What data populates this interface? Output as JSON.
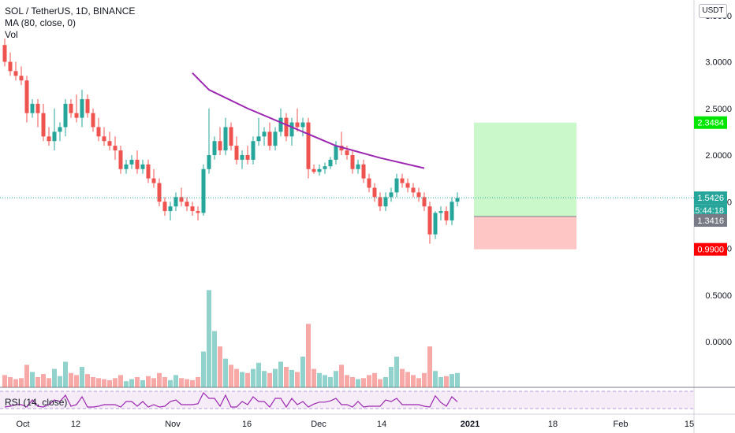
{
  "header": {
    "symbol": "SOL / TetherUS, 1D, BINANCE",
    "ma_label": "MA (80, close, 0)",
    "vol_label": "Vol",
    "currency": "USDT"
  },
  "rsi": {
    "label": "RSI (14, close)"
  },
  "price_axis": {
    "ticks": [
      "3.0000",
      "2.5000",
      "2.0000",
      "1.5000",
      "1.0000",
      "0.5000",
      "0.0000"
    ],
    "partial_top": "3.5000"
  },
  "time_axis": {
    "ticks": [
      "Oct",
      "12",
      "Nov",
      "16",
      "Dec",
      "14",
      "2021",
      "18",
      "Feb",
      "15"
    ]
  },
  "badges": {
    "take_profit": {
      "value": "2.3484",
      "color": "#00e600"
    },
    "last_price": {
      "value": "1.5426",
      "color": "#26a69a"
    },
    "countdown": {
      "value": "15:44:18",
      "color": "#26a69a"
    },
    "entry": {
      "value": "1.3416",
      "color": "#787b86"
    },
    "stop_loss": {
      "value": "0.9900",
      "color": "#ff0000"
    }
  },
  "colors": {
    "up": "#26a69a",
    "down": "#ef5350",
    "ma": "#9c27b0",
    "rsi": "#7e57c2"
  },
  "chart_data": {
    "type": "candlestick",
    "title": "SOL / TetherUS, 1D, BINANCE",
    "y_range": [
      0,
      3.5
    ],
    "last_price": 1.5426,
    "position": {
      "take_profit": 2.3484,
      "entry": 1.3416,
      "stop_loss": 0.99
    },
    "ma_series": [
      [
        34,
        2.88
      ],
      [
        37,
        2.7
      ],
      [
        44,
        2.5
      ],
      [
        52,
        2.3
      ],
      [
        60,
        2.1
      ],
      [
        68,
        1.97
      ],
      [
        76,
        1.86
      ]
    ],
    "candles": [
      [
        3.18,
        3.25,
        2.95,
        3.0
      ],
      [
        3.0,
        3.1,
        2.85,
        2.9
      ],
      [
        2.9,
        3.0,
        2.8,
        2.85
      ],
      [
        2.85,
        2.95,
        2.75,
        2.8
      ],
      [
        2.8,
        2.85,
        2.35,
        2.45
      ],
      [
        2.45,
        2.6,
        2.4,
        2.55
      ],
      [
        2.55,
        2.6,
        2.3,
        2.45
      ],
      [
        2.45,
        2.55,
        2.15,
        2.2
      ],
      [
        2.2,
        2.3,
        2.1,
        2.15
      ],
      [
        2.15,
        2.5,
        2.05,
        2.25
      ],
      [
        2.25,
        2.35,
        2.15,
        2.3
      ],
      [
        2.3,
        2.6,
        2.2,
        2.55
      ],
      [
        2.55,
        2.6,
        2.4,
        2.45
      ],
      [
        2.45,
        2.65,
        2.35,
        2.4
      ],
      [
        2.4,
        2.7,
        2.3,
        2.6
      ],
      [
        2.6,
        2.65,
        2.4,
        2.45
      ],
      [
        2.45,
        2.5,
        2.25,
        2.3
      ],
      [
        2.3,
        2.4,
        2.15,
        2.2
      ],
      [
        2.2,
        2.3,
        2.1,
        2.15
      ],
      [
        2.15,
        2.25,
        2.05,
        2.1
      ],
      [
        2.1,
        2.2,
        1.95,
        2.05
      ],
      [
        2.05,
        2.1,
        1.8,
        1.85
      ],
      [
        1.85,
        1.95,
        1.8,
        1.9
      ],
      [
        1.9,
        2.0,
        1.85,
        1.95
      ],
      [
        1.95,
        2.05,
        1.8,
        1.85
      ],
      [
        1.85,
        1.95,
        1.8,
        1.9
      ],
      [
        1.9,
        1.95,
        1.7,
        1.75
      ],
      [
        1.75,
        1.85,
        1.65,
        1.7
      ],
      [
        1.7,
        1.75,
        1.45,
        1.5
      ],
      [
        1.5,
        1.55,
        1.35,
        1.4
      ],
      [
        1.4,
        1.5,
        1.3,
        1.45
      ],
      [
        1.45,
        1.6,
        1.4,
        1.55
      ],
      [
        1.55,
        1.65,
        1.45,
        1.5
      ],
      [
        1.5,
        1.55,
        1.4,
        1.45
      ],
      [
        1.45,
        1.5,
        1.35,
        1.4
      ],
      [
        1.4,
        1.45,
        1.3,
        1.38
      ],
      [
        1.38,
        1.9,
        1.35,
        1.85
      ],
      [
        1.85,
        2.5,
        1.8,
        2.0
      ],
      [
        2.0,
        2.2,
        1.95,
        2.15
      ],
      [
        2.15,
        2.3,
        2.0,
        2.05
      ],
      [
        2.05,
        2.4,
        2.0,
        2.3
      ],
      [
        2.3,
        2.35,
        2.05,
        2.1
      ],
      [
        2.1,
        2.2,
        1.9,
        1.95
      ],
      [
        1.95,
        2.05,
        1.85,
        2.0
      ],
      [
        2.0,
        2.1,
        1.9,
        1.95
      ],
      [
        1.95,
        2.2,
        1.9,
        2.15
      ],
      [
        2.15,
        2.4,
        2.1,
        2.2
      ],
      [
        2.2,
        2.3,
        2.1,
        2.25
      ],
      [
        2.25,
        2.35,
        2.05,
        2.1
      ],
      [
        2.1,
        2.3,
        2.05,
        2.25
      ],
      [
        2.25,
        2.5,
        2.2,
        2.4
      ],
      [
        2.4,
        2.45,
        2.15,
        2.2
      ],
      [
        2.2,
        2.4,
        2.1,
        2.35
      ],
      [
        2.35,
        2.5,
        2.25,
        2.3
      ],
      [
        2.3,
        2.4,
        2.2,
        2.35
      ],
      [
        2.35,
        2.4,
        1.75,
        1.85
      ],
      [
        1.85,
        1.9,
        1.8,
        1.82
      ],
      [
        1.82,
        1.9,
        1.78,
        1.85
      ],
      [
        1.85,
        1.92,
        1.8,
        1.88
      ],
      [
        1.88,
        1.98,
        1.85,
        1.95
      ],
      [
        1.95,
        2.15,
        1.9,
        2.1
      ],
      [
        2.1,
        2.25,
        2.0,
        2.05
      ],
      [
        2.05,
        2.1,
        1.95,
        2.0
      ],
      [
        2.0,
        2.05,
        1.8,
        1.85
      ],
      [
        1.85,
        1.95,
        1.8,
        1.9
      ],
      [
        1.9,
        1.95,
        1.7,
        1.75
      ],
      [
        1.75,
        1.8,
        1.6,
        1.65
      ],
      [
        1.65,
        1.7,
        1.5,
        1.55
      ],
      [
        1.55,
        1.6,
        1.4,
        1.45
      ],
      [
        1.45,
        1.6,
        1.4,
        1.55
      ],
      [
        1.55,
        1.65,
        1.5,
        1.6
      ],
      [
        1.6,
        1.8,
        1.55,
        1.75
      ],
      [
        1.75,
        1.8,
        1.65,
        1.7
      ],
      [
        1.7,
        1.75,
        1.6,
        1.65
      ],
      [
        1.65,
        1.7,
        1.55,
        1.6
      ],
      [
        1.6,
        1.65,
        1.5,
        1.55
      ],
      [
        1.55,
        1.6,
        1.4,
        1.45
      ],
      [
        1.45,
        1.5,
        1.05,
        1.15
      ],
      [
        1.15,
        1.4,
        1.1,
        1.38
      ],
      [
        1.38,
        1.45,
        1.3,
        1.4
      ],
      [
        1.4,
        1.45,
        1.25,
        1.3
      ],
      [
        1.3,
        1.55,
        1.25,
        1.5
      ],
      [
        1.5,
        1.6,
        1.45,
        1.54
      ]
    ],
    "volume": [
      0.12,
      0.1,
      0.08,
      0.09,
      0.22,
      0.15,
      0.1,
      0.13,
      0.09,
      0.18,
      0.11,
      0.25,
      0.14,
      0.12,
      0.2,
      0.13,
      0.1,
      0.09,
      0.08,
      0.07,
      0.09,
      0.12,
      0.06,
      0.08,
      0.1,
      0.07,
      0.11,
      0.09,
      0.14,
      0.1,
      0.07,
      0.12,
      0.09,
      0.08,
      0.07,
      0.1,
      0.35,
      0.95,
      0.55,
      0.4,
      0.28,
      0.22,
      0.18,
      0.15,
      0.14,
      0.18,
      0.24,
      0.16,
      0.14,
      0.18,
      0.25,
      0.2,
      0.17,
      0.15,
      0.3,
      0.62,
      0.18,
      0.14,
      0.12,
      0.1,
      0.16,
      0.22,
      0.12,
      0.1,
      0.08,
      0.09,
      0.12,
      0.14,
      0.08,
      0.1,
      0.2,
      0.3,
      0.18,
      0.15,
      0.12,
      0.09,
      0.14,
      0.4,
      0.16,
      0.1,
      0.11,
      0.13,
      0.14
    ]
  }
}
